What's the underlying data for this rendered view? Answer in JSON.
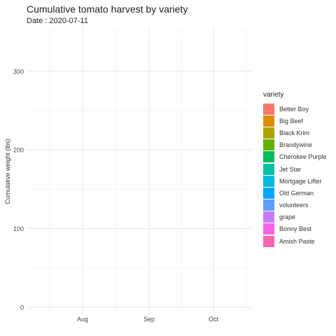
{
  "chart_data": {
    "type": "line",
    "title": "Cumulative tomato harvest by variety",
    "subtitle": "Date : 2020-07-11",
    "xlabel": "",
    "ylabel": "Cumulative weight (lbs)",
    "x_ticks": [
      "Aug",
      "Sep",
      "Oct"
    ],
    "y_ticks": [
      0,
      100,
      200,
      300
    ],
    "ylim": [
      -10,
      355
    ],
    "grid": true,
    "legend": {
      "title": "variety",
      "position": "right",
      "entries": [
        {
          "name": "Better Boy",
          "color": "#F8766D"
        },
        {
          "name": "Big Beef",
          "color": "#DB8E00"
        },
        {
          "name": "Black Krim",
          "color": "#AEA200"
        },
        {
          "name": "Brandywine",
          "color": "#64B200"
        },
        {
          "name": "Cherokee Purple",
          "color": "#00BD5C"
        },
        {
          "name": "Jet Star",
          "color": "#00C1A7"
        },
        {
          "name": "Mortgage Lifter",
          "color": "#00BADE"
        },
        {
          "name": "Old German",
          "color": "#00A6FF"
        },
        {
          "name": "volunteers",
          "color": "#619CFF"
        },
        {
          "name": "grape",
          "color": "#C77CFF"
        },
        {
          "name": "Bonny Best",
          "color": "#F564E3"
        },
        {
          "name": "Amish Paste",
          "color": "#FF64B0"
        }
      ]
    },
    "series": []
  }
}
